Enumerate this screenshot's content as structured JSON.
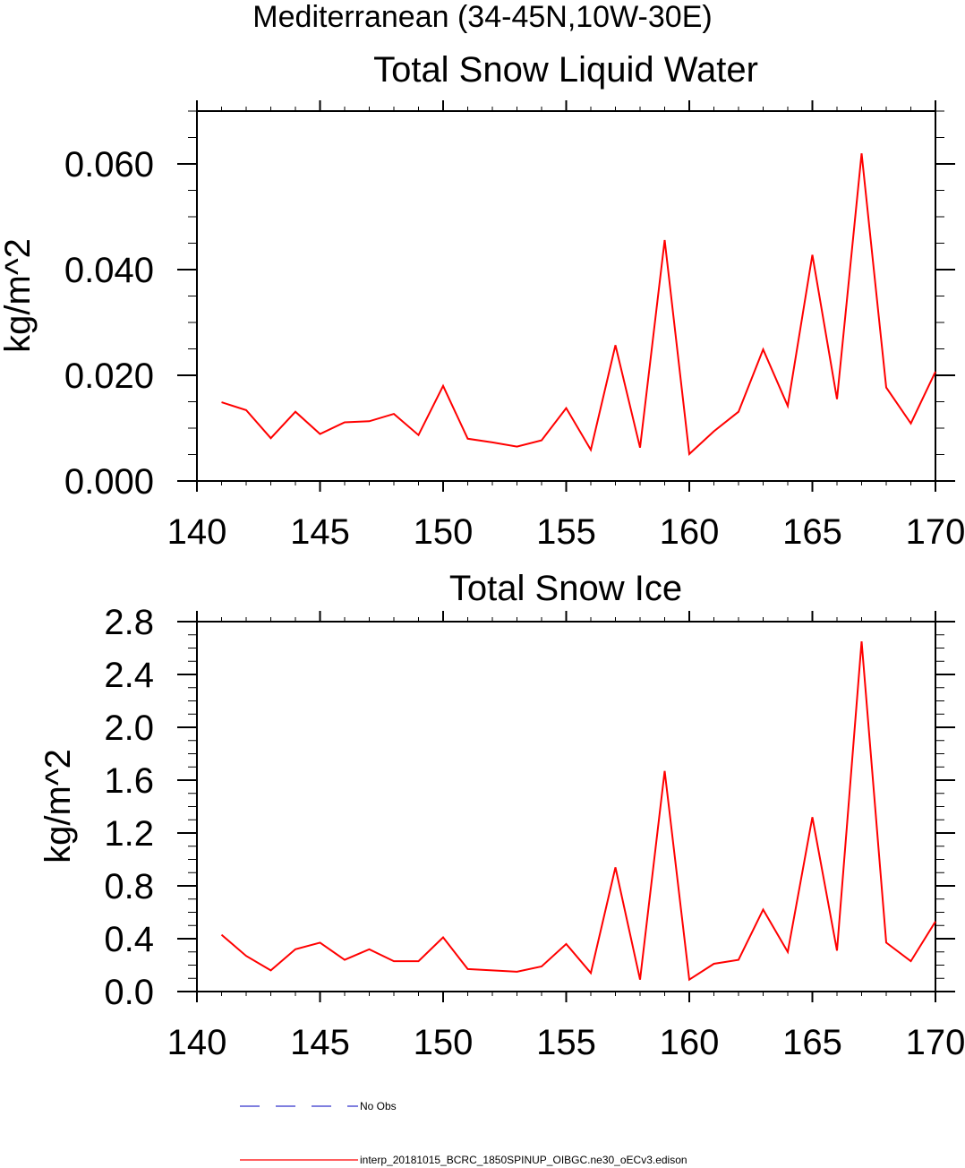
{
  "figure": {
    "region_title": "Mediterranean (34-45N,10W-30E)"
  },
  "colors": {
    "model_line": "#ff0000",
    "obs_line": "#3333cc",
    "axis": "#000000"
  },
  "legend": {
    "items": [
      {
        "label": "No Obs",
        "style": "dashed",
        "color": "#3333cc"
      },
      {
        "label": "interp_20181015_BCRC_1850SPINUP_OIBGC.ne30_oECv3.edison",
        "style": "solid",
        "color": "#ff0000"
      }
    ]
  },
  "chart_data": [
    {
      "type": "line",
      "title": "Total Snow Liquid Water",
      "xlabel": "",
      "ylabel": "kg/m^2",
      "xlim": [
        140,
        170
      ],
      "ylim": [
        0,
        0.07
      ],
      "grid": false,
      "x_ticks": [
        "140",
        "145",
        "150",
        "155",
        "160",
        "165",
        "170"
      ],
      "y_ticks": [
        "0.000",
        "0.020",
        "0.040",
        "0.060"
      ],
      "series": [
        {
          "name": "interp_20181015_BCRC_1850SPINUP_OIBGC.ne30_oECv3.edison",
          "x": [
            141,
            142,
            143,
            144,
            145,
            146,
            147,
            148,
            149,
            150,
            151,
            152,
            153,
            154,
            155,
            156,
            157,
            158,
            159,
            160,
            161,
            162,
            163,
            164,
            165,
            166,
            167,
            168,
            169,
            170
          ],
          "y": [
            0.0149,
            0.0134,
            0.0081,
            0.0131,
            0.0089,
            0.0111,
            0.0113,
            0.0127,
            0.0087,
            0.018,
            0.008,
            0.0073,
            0.0065,
            0.0077,
            0.0138,
            0.0059,
            0.0257,
            0.0063,
            0.0456,
            0.0051,
            0.0094,
            0.0131,
            0.0249,
            0.0142,
            0.0428,
            0.0155,
            0.062,
            0.0177,
            0.0109,
            0.0207
          ]
        }
      ]
    },
    {
      "type": "line",
      "title": "Total Snow Ice",
      "xlabel": "",
      "ylabel": "kg/m^2",
      "xlim": [
        140,
        170
      ],
      "ylim": [
        0,
        2.8
      ],
      "grid": false,
      "x_ticks": [
        "140",
        "145",
        "150",
        "155",
        "160",
        "165",
        "170"
      ],
      "y_ticks": [
        "0.0",
        "0.4",
        "0.8",
        "1.2",
        "1.6",
        "2.0",
        "2.4",
        "2.8"
      ],
      "series": [
        {
          "name": "interp_20181015_BCRC_1850SPINUP_OIBGC.ne30_oECv3.edison",
          "x": [
            141,
            142,
            143,
            144,
            145,
            146,
            147,
            148,
            149,
            150,
            151,
            152,
            153,
            154,
            155,
            156,
            157,
            158,
            159,
            160,
            161,
            162,
            163,
            164,
            165,
            166,
            167,
            168,
            169,
            170
          ],
          "y": [
            0.43,
            0.27,
            0.16,
            0.32,
            0.37,
            0.24,
            0.32,
            0.23,
            0.23,
            0.41,
            0.17,
            0.16,
            0.15,
            0.19,
            0.36,
            0.14,
            0.94,
            0.09,
            1.67,
            0.09,
            0.21,
            0.24,
            0.62,
            0.3,
            1.32,
            0.31,
            2.65,
            0.37,
            0.23,
            0.53
          ]
        }
      ]
    }
  ]
}
